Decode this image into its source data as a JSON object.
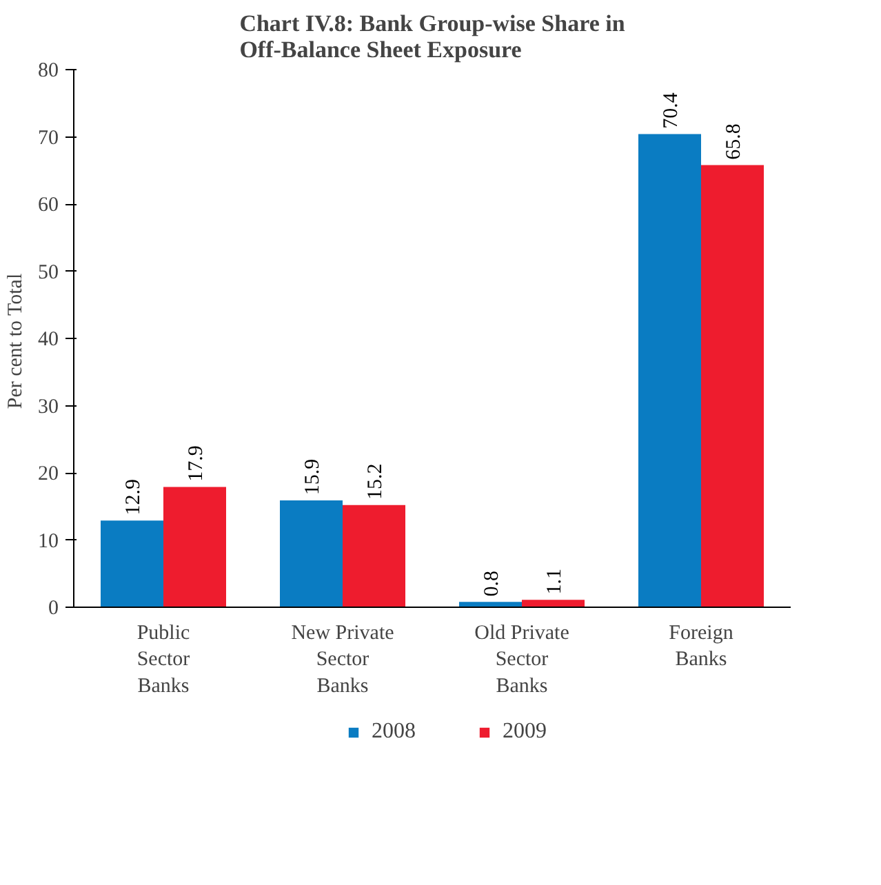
{
  "chart_data": {
    "type": "bar",
    "title": "Chart IV.8: Bank Group-wise Share in\nOff-Balance Sheet Exposure",
    "ylabel": "Per  cent to Total",
    "categories": [
      "Public\nSector\nBanks",
      "New Private\nSector\nBanks",
      "Old Private\nSector\nBanks",
      "Foreign\nBanks"
    ],
    "series": [
      {
        "name": "2008",
        "color": "#0a7cc2",
        "values": [
          12.9,
          15.9,
          0.8,
          70.4
        ]
      },
      {
        "name": "2009",
        "color": "#ee1c2e",
        "values": [
          17.9,
          15.2,
          1.1,
          65.8
        ]
      }
    ],
    "ylim": [
      0,
      80
    ],
    "yticks": [
      0,
      10,
      20,
      30,
      40,
      50,
      60,
      70,
      80
    ],
    "data_labels": true,
    "legend": "bottom",
    "grid": false
  }
}
